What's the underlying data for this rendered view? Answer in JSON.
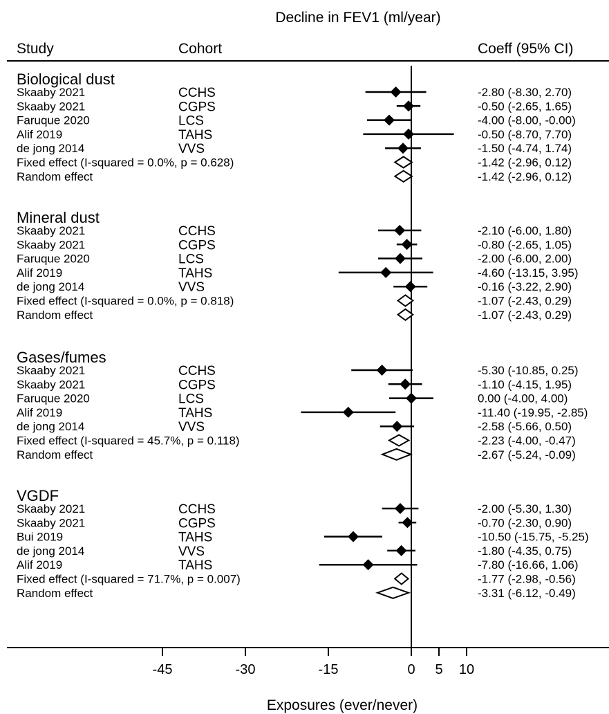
{
  "chart_data": {
    "type": "forest",
    "title": "Decline in FEV1 (ml/year)",
    "xlabel": "Exposures (ever/never)",
    "columns": {
      "study": "Study",
      "cohort": "Cohort",
      "coeff": "Coeff (95% CI)"
    },
    "x_ticks": [
      -45,
      -30,
      -15,
      0,
      5,
      10
    ],
    "x_tick_labels": [
      "-45",
      "-30",
      "-15",
      "0",
      "5",
      "10"
    ],
    "xlim": [
      -66,
      33
    ],
    "reference_line": 0,
    "groups": [
      {
        "name": "Biological dust",
        "rows": [
          {
            "study": "Skaaby 2021",
            "cohort": "CCHS",
            "est": -2.8,
            "lo": -8.3,
            "hi": 2.7,
            "ci_text": "-2.80 (-8.30, 2.70)"
          },
          {
            "study": "Skaaby 2021",
            "cohort": "CGPS",
            "est": -0.5,
            "lo": -2.65,
            "hi": 1.65,
            "ci_text": "-0.50 (-2.65, 1.65)"
          },
          {
            "study": "Faruque 2020",
            "cohort": "LCS",
            "est": -4.0,
            "lo": -8.0,
            "hi": -0.0,
            "ci_text": "-4.00 (-8.00, -0.00)"
          },
          {
            "study": "Alif 2019",
            "cohort": "TAHS",
            "est": -0.5,
            "lo": -8.7,
            "hi": 7.7,
            "ci_text": "-0.50 (-8.70, 7.70)"
          },
          {
            "study": "de jong 2014",
            "cohort": "VVS",
            "est": -1.5,
            "lo": -4.74,
            "hi": 1.74,
            "ci_text": "-1.50 (-4.74, 1.74)"
          }
        ],
        "fixed": {
          "label": "Fixed effect  (I-squared = 0.0%, p = 0.628)",
          "est": -1.42,
          "lo": -2.96,
          "hi": 0.12,
          "ci_text": "-1.42 (-2.96, 0.12)"
        },
        "random": {
          "label": "Random effect",
          "est": -1.42,
          "lo": -2.96,
          "hi": 0.12,
          "ci_text": "-1.42 (-2.96, 0.12)"
        }
      },
      {
        "name": "Mineral dust",
        "rows": [
          {
            "study": "Skaaby 2021",
            "cohort": "CCHS",
            "est": -2.1,
            "lo": -6.0,
            "hi": 1.8,
            "ci_text": "-2.10 (-6.00, 1.80)"
          },
          {
            "study": "Skaaby 2021",
            "cohort": "CGPS",
            "est": -0.8,
            "lo": -2.65,
            "hi": 1.05,
            "ci_text": "-0.80 (-2.65, 1.05)"
          },
          {
            "study": "Faruque 2020",
            "cohort": "LCS",
            "est": -2.0,
            "lo": -6.0,
            "hi": 2.0,
            "ci_text": "-2.00 (-6.00, 2.00)"
          },
          {
            "study": "Alif 2019",
            "cohort": "TAHS",
            "est": -4.6,
            "lo": -13.15,
            "hi": 3.95,
            "ci_text": "-4.60 (-13.15, 3.95)"
          },
          {
            "study": "de jong 2014",
            "cohort": "VVS",
            "est": -0.16,
            "lo": -3.22,
            "hi": 2.9,
            "ci_text": "-0.16 (-3.22, 2.90)"
          }
        ],
        "fixed": {
          "label": "Fixed effect  (I-squared = 0.0%, p = 0.818)",
          "est": -1.07,
          "lo": -2.43,
          "hi": 0.29,
          "ci_text": "-1.07 (-2.43, 0.29)"
        },
        "random": {
          "label": "Random effect",
          "est": -1.07,
          "lo": -2.43,
          "hi": 0.29,
          "ci_text": "-1.07 (-2.43, 0.29)"
        }
      },
      {
        "name": "Gases/fumes",
        "rows": [
          {
            "study": "Skaaby 2021",
            "cohort": "CCHS",
            "est": -5.3,
            "lo": -10.85,
            "hi": 0.25,
            "ci_text": "-5.30 (-10.85, 0.25)"
          },
          {
            "study": "Skaaby 2021",
            "cohort": "CGPS",
            "est": -1.1,
            "lo": -4.15,
            "hi": 1.95,
            "ci_text": "-1.10 (-4.15, 1.95)"
          },
          {
            "study": "Faruque 2020",
            "cohort": "LCS",
            "est": 0.0,
            "lo": -4.0,
            "hi": 4.0,
            "ci_text": "0.00 (-4.00, 4.00)"
          },
          {
            "study": "Alif 2019",
            "cohort": "TAHS",
            "est": -11.4,
            "lo": -19.95,
            "hi": -2.85,
            "ci_text": "-11.40 (-19.95, -2.85)"
          },
          {
            "study": "de jong 2014",
            "cohort": "VVS",
            "est": -2.58,
            "lo": -5.66,
            "hi": 0.5,
            "ci_text": "-2.58 (-5.66, 0.50)"
          }
        ],
        "fixed": {
          "label": "Fixed effect  (I-squared = 45.7%, p = 0.118)",
          "est": -2.23,
          "lo": -4.0,
          "hi": -0.47,
          "ci_text": "-2.23 (-4.00, -0.47)"
        },
        "random": {
          "label": "Random effect",
          "est": -2.67,
          "lo": -5.24,
          "hi": -0.09,
          "ci_text": "-2.67 (-5.24, -0.09)"
        }
      },
      {
        "name": "VGDF",
        "rows": [
          {
            "study": "Skaaby 2021",
            "cohort": "CCHS",
            "est": -2.0,
            "lo": -5.3,
            "hi": 1.3,
            "ci_text": "-2.00 (-5.30, 1.30)"
          },
          {
            "study": "Skaaby 2021",
            "cohort": "CGPS",
            "est": -0.7,
            "lo": -2.3,
            "hi": 0.9,
            "ci_text": "-0.70 (-2.30, 0.90)"
          },
          {
            "study": "Bui 2019",
            "cohort": "TAHS",
            "est": -10.5,
            "lo": -15.75,
            "hi": -5.25,
            "ci_text": "-10.50 (-15.75, -5.25)"
          },
          {
            "study": "de jong 2014",
            "cohort": "VVS",
            "est": -1.8,
            "lo": -4.35,
            "hi": 0.75,
            "ci_text": "-1.80 (-4.35, 0.75)"
          },
          {
            "study": "Alif 2019",
            "cohort": "TAHS",
            "est": -7.8,
            "lo": -16.66,
            "hi": 1.06,
            "ci_text": "-7.80 (-16.66, 1.06)"
          }
        ],
        "fixed": {
          "label": "Fixed effect  (I-squared = 71.7%, p = 0.007)",
          "est": -1.77,
          "lo": -2.98,
          "hi": -0.56,
          "ci_text": "-1.77 (-2.98, -0.56)"
        },
        "random": {
          "label": "Random effect",
          "est": -3.31,
          "lo": -6.12,
          "hi": -0.49,
          "ci_text": "-3.31 (-6.12, -0.49)"
        }
      }
    ]
  }
}
